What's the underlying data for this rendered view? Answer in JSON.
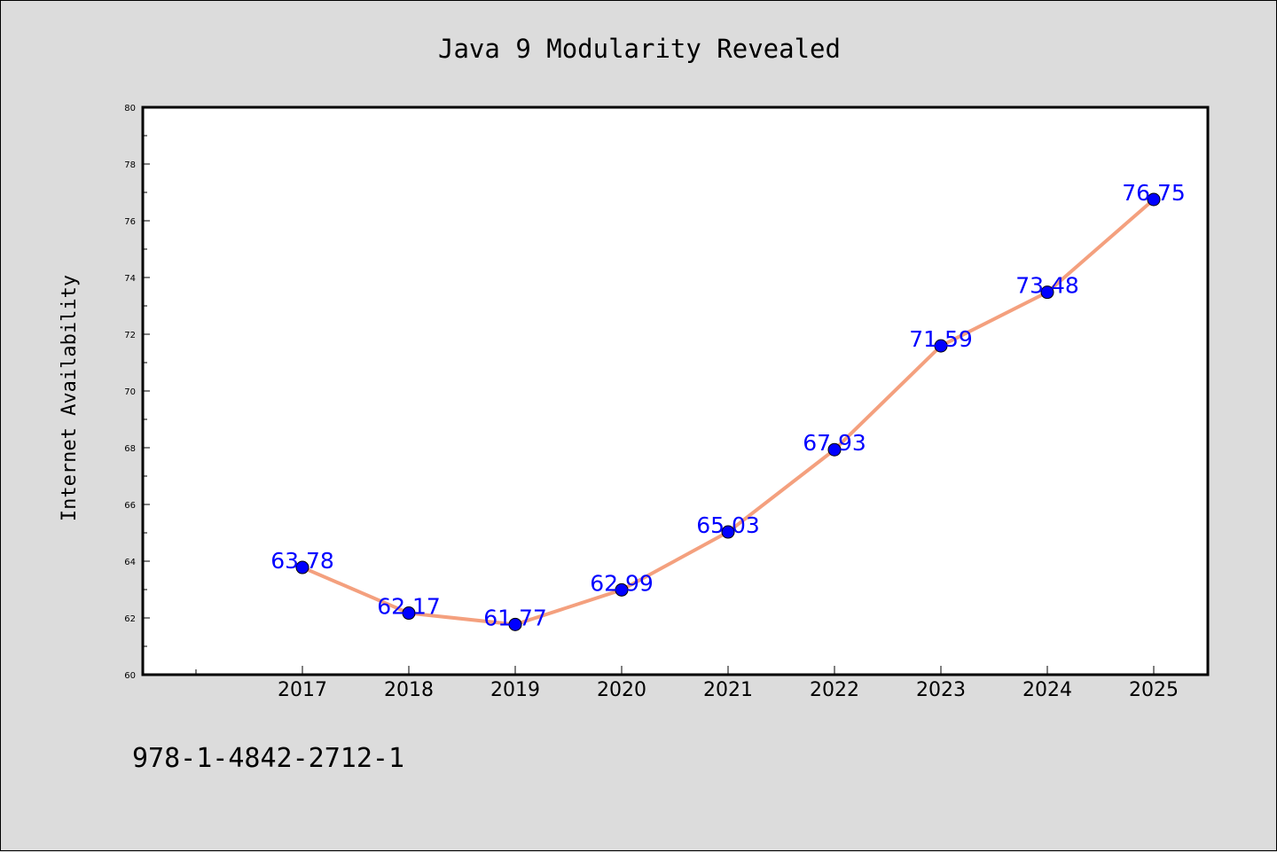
{
  "chart_data": {
    "type": "line",
    "title": "Java 9 Modularity Revealed",
    "xlabel": "",
    "ylabel": "Internet Availability",
    "categories": [
      "2017",
      "2018",
      "2019",
      "2020",
      "2021",
      "2022",
      "2023",
      "2024",
      "2025"
    ],
    "values": [
      63.78,
      62.17,
      61.77,
      62.99,
      65.03,
      67.93,
      71.59,
      73.48,
      76.75
    ],
    "data_labels": [
      "63.78",
      "62.17",
      "61.77",
      "62.99",
      "65.03",
      "67.93",
      "71.59",
      "73.48",
      "76.75"
    ],
    "ylim": [
      60,
      80
    ],
    "yticks": [
      "60",
      "62",
      "64",
      "66",
      "68",
      "70",
      "72",
      "74",
      "76",
      "78",
      "80"
    ],
    "grid": false,
    "line_color": "#f4a07e",
    "marker_color": "#0000ff",
    "label_color": "#0000ff"
  },
  "footer": {
    "isbn": "978-1-4842-2712-1"
  }
}
